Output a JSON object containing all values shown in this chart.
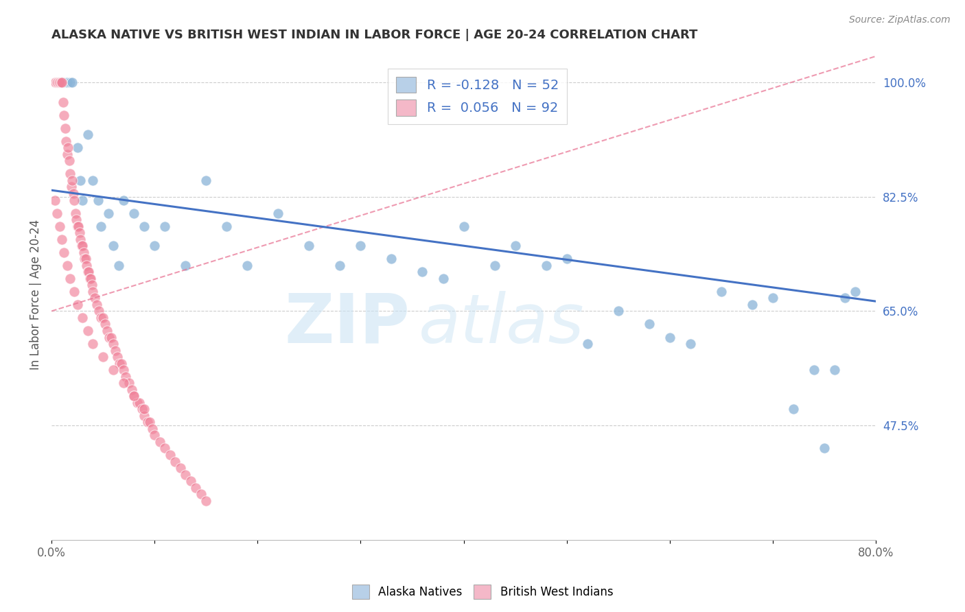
{
  "title": "ALASKA NATIVE VS BRITISH WEST INDIAN IN LABOR FORCE | AGE 20-24 CORRELATION CHART",
  "source": "Source: ZipAtlas.com",
  "ylabel": "In Labor Force | Age 20-24",
  "xlim": [
    0.0,
    0.8
  ],
  "ylim": [
    0.3,
    1.05
  ],
  "ytick_right_vals": [
    0.475,
    0.65,
    0.825,
    1.0
  ],
  "ytick_right_labels": [
    "47.5%",
    "65.0%",
    "82.5%",
    "100.0%"
  ],
  "alaska_R": -0.128,
  "alaska_N": 52,
  "bwi_R": 0.056,
  "bwi_N": 92,
  "alaska_dot_color": "#8ab4d8",
  "bwi_dot_color": "#f08098",
  "alaska_legend_color": "#b8d0e8",
  "bwi_legend_color": "#f4b8c8",
  "trend_alaska_color": "#4472c4",
  "trend_bwi_color": "#e87090",
  "alaska_x": [
    0.005,
    0.008,
    0.01,
    0.012,
    0.015,
    0.018,
    0.02,
    0.025,
    0.028,
    0.03,
    0.035,
    0.04,
    0.045,
    0.048,
    0.055,
    0.06,
    0.065,
    0.07,
    0.08,
    0.09,
    0.1,
    0.11,
    0.13,
    0.15,
    0.17,
    0.19,
    0.22,
    0.25,
    0.28,
    0.3,
    0.33,
    0.36,
    0.38,
    0.4,
    0.43,
    0.45,
    0.48,
    0.5,
    0.52,
    0.55,
    0.58,
    0.6,
    0.62,
    0.65,
    0.68,
    0.7,
    0.72,
    0.74,
    0.75,
    0.76,
    0.77,
    0.78
  ],
  "alaska_y": [
    1.0,
    1.0,
    1.0,
    1.0,
    1.0,
    1.0,
    1.0,
    0.9,
    0.85,
    0.82,
    0.92,
    0.85,
    0.82,
    0.78,
    0.8,
    0.75,
    0.72,
    0.82,
    0.8,
    0.78,
    0.75,
    0.78,
    0.72,
    0.85,
    0.78,
    0.72,
    0.8,
    0.75,
    0.72,
    0.75,
    0.73,
    0.71,
    0.7,
    0.78,
    0.72,
    0.75,
    0.72,
    0.73,
    0.6,
    0.65,
    0.63,
    0.61,
    0.6,
    0.68,
    0.66,
    0.67,
    0.5,
    0.56,
    0.44,
    0.56,
    0.67,
    0.68
  ],
  "bwi_x": [
    0.003,
    0.004,
    0.005,
    0.006,
    0.007,
    0.008,
    0.009,
    0.01,
    0.011,
    0.012,
    0.013,
    0.014,
    0.015,
    0.016,
    0.017,
    0.018,
    0.019,
    0.02,
    0.021,
    0.022,
    0.023,
    0.024,
    0.025,
    0.026,
    0.027,
    0.028,
    0.029,
    0.03,
    0.031,
    0.032,
    0.033,
    0.034,
    0.035,
    0.036,
    0.037,
    0.038,
    0.039,
    0.04,
    0.042,
    0.044,
    0.046,
    0.048,
    0.05,
    0.052,
    0.054,
    0.056,
    0.058,
    0.06,
    0.062,
    0.064,
    0.066,
    0.068,
    0.07,
    0.072,
    0.075,
    0.078,
    0.08,
    0.083,
    0.085,
    0.088,
    0.09,
    0.093,
    0.095,
    0.098,
    0.1,
    0.105,
    0.11,
    0.115,
    0.12,
    0.125,
    0.13,
    0.135,
    0.14,
    0.145,
    0.15,
    0.003,
    0.005,
    0.008,
    0.01,
    0.012,
    0.015,
    0.018,
    0.022,
    0.025,
    0.03,
    0.035,
    0.04,
    0.05,
    0.06,
    0.07,
    0.08,
    0.09
  ],
  "bwi_y": [
    1.0,
    1.0,
    1.0,
    1.0,
    1.0,
    1.0,
    1.0,
    1.0,
    0.97,
    0.95,
    0.93,
    0.91,
    0.89,
    0.9,
    0.88,
    0.86,
    0.84,
    0.85,
    0.83,
    0.82,
    0.8,
    0.79,
    0.78,
    0.78,
    0.77,
    0.76,
    0.75,
    0.75,
    0.74,
    0.73,
    0.73,
    0.72,
    0.71,
    0.71,
    0.7,
    0.7,
    0.69,
    0.68,
    0.67,
    0.66,
    0.65,
    0.64,
    0.64,
    0.63,
    0.62,
    0.61,
    0.61,
    0.6,
    0.59,
    0.58,
    0.57,
    0.57,
    0.56,
    0.55,
    0.54,
    0.53,
    0.52,
    0.51,
    0.51,
    0.5,
    0.49,
    0.48,
    0.48,
    0.47,
    0.46,
    0.45,
    0.44,
    0.43,
    0.42,
    0.41,
    0.4,
    0.39,
    0.38,
    0.37,
    0.36,
    0.82,
    0.8,
    0.78,
    0.76,
    0.74,
    0.72,
    0.7,
    0.68,
    0.66,
    0.64,
    0.62,
    0.6,
    0.58,
    0.56,
    0.54,
    0.52,
    0.5
  ],
  "trend_alaska_x0": 0.0,
  "trend_alaska_x1": 0.8,
  "trend_alaska_y0": 0.835,
  "trend_alaska_y1": 0.665,
  "trend_bwi_x0": 0.0,
  "trend_bwi_x1": 0.8,
  "trend_bwi_y0": 0.65,
  "trend_bwi_y1": 1.04
}
